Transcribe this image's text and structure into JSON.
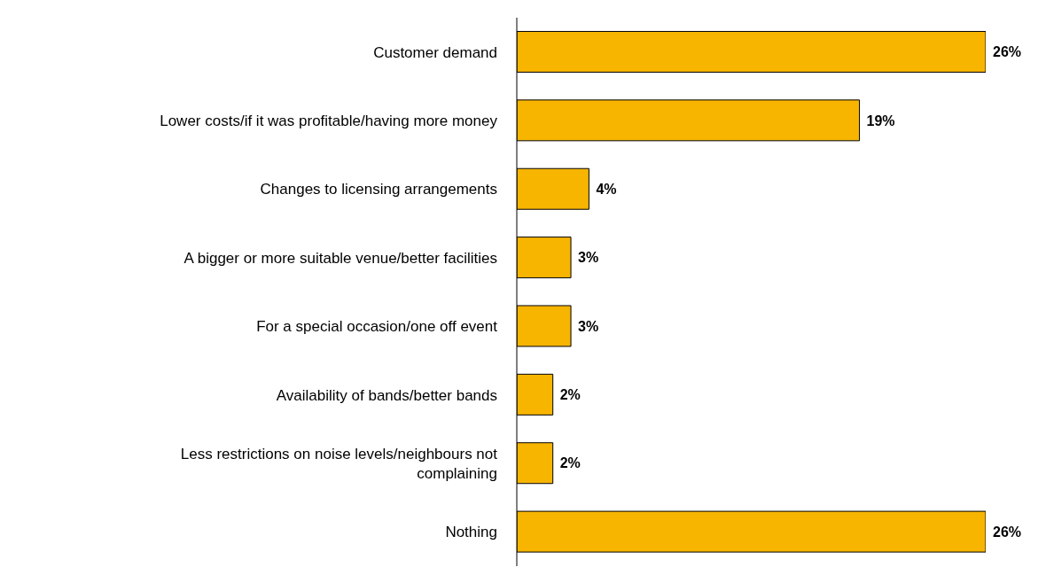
{
  "chart_data": {
    "type": "bar",
    "orientation": "horizontal",
    "categories": [
      "Customer demand",
      "Lower costs/if it was profitable/having more money",
      "Changes to licensing arrangements",
      "A bigger or more suitable venue/better facilities",
      "For a special occasion/one off event",
      "Availability of bands/better bands",
      "Less restrictions on noise levels/neighbours not complaining",
      "Nothing"
    ],
    "values": [
      26,
      19,
      4,
      3,
      3,
      2,
      2,
      26
    ],
    "value_labels": [
      "26%",
      "19%",
      "4%",
      "3%",
      "3%",
      "2%",
      "2%",
      "26%"
    ],
    "color": "#f7b500"
  }
}
